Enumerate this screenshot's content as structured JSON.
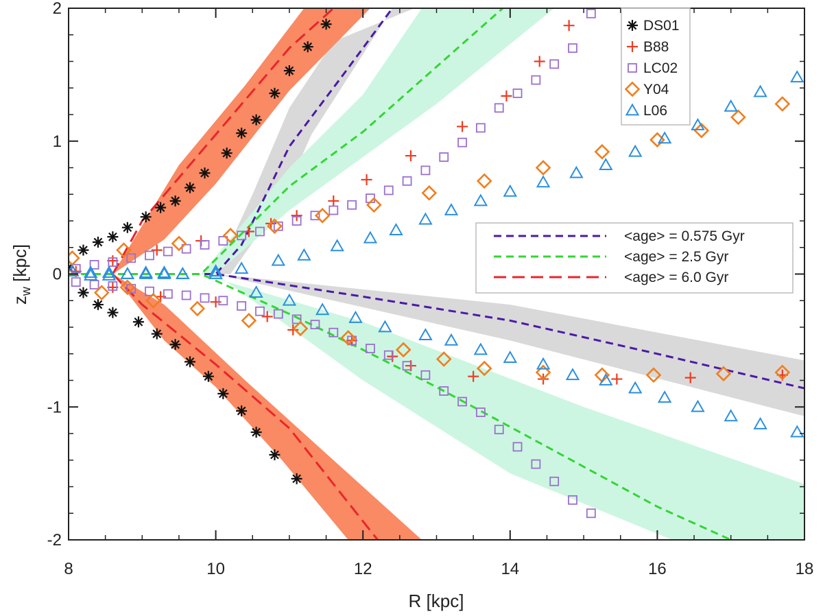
{
  "chart_data": {
    "type": "scatter",
    "xlabel": "R [kpc]",
    "ylabel": "z",
    "ylabel_sub": "w",
    "ylabel_unit": " [kpc]",
    "xlim": [
      8,
      18
    ],
    "ylim": [
      -2,
      2
    ],
    "xticks": [
      8,
      10,
      12,
      14,
      16,
      18
    ],
    "yticks": [
      -2,
      -1,
      0,
      1,
      2
    ],
    "grid": false,
    "colors": {
      "DS01": "#111111",
      "B88": "#ee3b20",
      "LC02": "#9b6fcf",
      "Y04": "#f07e1e",
      "L06": "#2a8fe0",
      "age0575": "#4b1aa6",
      "age25": "#33d633",
      "age60": "#e8262a",
      "bandRed": "#f98a63",
      "bandGrey": "#d9d9d9",
      "bandGreen": "#cdf6e2"
    },
    "series": [
      {
        "name": "DS01",
        "marker": "asterisk",
        "x": [
          8.0,
          8.2,
          8.4,
          8.6,
          8.8,
          9.05,
          9.25,
          9.45,
          9.65,
          9.85,
          10.15,
          10.35,
          10.55,
          10.8,
          11.0,
          11.25,
          11.5,
          8.2,
          8.4,
          8.6,
          8.95,
          9.2,
          9.45,
          9.65,
          9.9,
          10.1,
          10.35,
          10.55,
          10.8,
          11.1
        ],
        "y": [
          0.05,
          0.18,
          0.24,
          0.28,
          0.35,
          0.43,
          0.5,
          0.55,
          0.65,
          0.76,
          0.91,
          1.06,
          1.16,
          1.36,
          1.53,
          1.71,
          1.88,
          -0.14,
          -0.23,
          -0.29,
          -0.36,
          -0.45,
          -0.53,
          -0.66,
          -0.77,
          -0.9,
          -1.03,
          -1.19,
          -1.36,
          -1.54
        ]
      },
      {
        "name": "B88",
        "marker": "plus",
        "x": [
          8.1,
          8.6,
          9.2,
          9.8,
          10.45,
          10.75,
          11.1,
          11.6,
          12.05,
          12.65,
          13.35,
          13.95,
          14.4,
          14.8,
          8.6,
          9.25,
          10.0,
          10.7,
          11.05,
          11.85,
          12.4,
          12.65,
          13.5,
          14.45,
          15.45,
          16.45,
          17.7
        ],
        "y": [
          0.02,
          0.1,
          0.18,
          0.25,
          0.32,
          0.38,
          0.44,
          0.55,
          0.71,
          0.89,
          1.11,
          1.34,
          1.6,
          1.87,
          -0.1,
          -0.17,
          -0.21,
          -0.32,
          -0.42,
          -0.5,
          -0.62,
          -0.69,
          -0.77,
          -0.79,
          -0.79,
          -0.78,
          -0.76
        ]
      },
      {
        "name": "LC02",
        "marker": "square",
        "x": [
          8.1,
          8.35,
          8.6,
          8.85,
          9.1,
          9.35,
          9.6,
          9.85,
          10.1,
          10.35,
          10.6,
          10.85,
          11.1,
          11.35,
          11.6,
          11.85,
          12.1,
          12.35,
          12.6,
          12.85,
          13.1,
          13.35,
          13.6,
          13.85,
          14.1,
          14.35,
          14.6,
          14.85,
          15.1,
          8.1,
          8.35,
          8.6,
          8.85,
          9.1,
          9.35,
          9.6,
          9.85,
          10.1,
          10.35,
          10.6,
          10.85,
          11.1,
          11.35,
          11.6,
          11.85,
          12.1,
          12.35,
          12.6,
          12.85,
          13.1,
          13.35,
          13.6,
          13.85,
          14.1,
          14.35,
          14.6,
          14.85,
          15.1
        ],
        "y": [
          0.04,
          0.07,
          0.09,
          0.12,
          0.14,
          0.17,
          0.19,
          0.22,
          0.25,
          0.29,
          0.32,
          0.36,
          0.4,
          0.44,
          0.48,
          0.52,
          0.57,
          0.63,
          0.7,
          0.78,
          0.88,
          0.99,
          1.1,
          1.25,
          1.36,
          1.46,
          1.58,
          1.7,
          1.96,
          -0.06,
          -0.08,
          -0.09,
          -0.11,
          -0.13,
          -0.15,
          -0.16,
          -0.18,
          -0.2,
          -0.24,
          -0.28,
          -0.3,
          -0.34,
          -0.38,
          -0.44,
          -0.5,
          -0.56,
          -0.61,
          -0.69,
          -0.76,
          -0.88,
          -0.96,
          -1.04,
          -1.17,
          -1.3,
          -1.43,
          -1.56,
          -1.7,
          -1.8
        ]
      },
      {
        "name": "Y04",
        "marker": "diamond",
        "x": [
          8.05,
          8.75,
          9.5,
          10.2,
          10.8,
          11.45,
          12.15,
          12.9,
          13.65,
          14.45,
          15.25,
          16.0,
          16.6,
          17.1,
          17.7,
          8.45,
          8.8,
          9.15,
          9.75,
          10.45,
          11.15,
          11.8,
          12.55,
          13.1,
          13.65,
          14.45,
          15.25,
          15.95,
          16.9,
          17.7
        ],
        "y": [
          0.12,
          0.18,
          0.23,
          0.29,
          0.36,
          0.44,
          0.52,
          0.61,
          0.7,
          0.8,
          0.92,
          1.01,
          1.08,
          1.18,
          1.28,
          -0.14,
          -0.1,
          -0.2,
          -0.26,
          -0.35,
          -0.41,
          -0.48,
          -0.57,
          -0.64,
          -0.71,
          -0.74,
          -0.76,
          -0.76,
          -0.75,
          -0.74
        ]
      },
      {
        "name": "L06",
        "marker": "triangle",
        "x": [
          8.05,
          8.3,
          8.55,
          8.8,
          9.05,
          9.3,
          9.55,
          10.0,
          10.35,
          10.85,
          11.2,
          11.65,
          12.1,
          12.45,
          12.85,
          13.2,
          13.6,
          14.0,
          14.45,
          14.9,
          15.3,
          15.7,
          16.1,
          16.55,
          17.0,
          17.4,
          17.9,
          8.3,
          8.55,
          8.8,
          9.05,
          9.3,
          9.55,
          10.0,
          10.55,
          11.0,
          11.45,
          11.9,
          12.3,
          12.85,
          13.2,
          13.6,
          14.0,
          14.45,
          14.85,
          15.3,
          15.7,
          16.1,
          16.55,
          17.0,
          17.4,
          17.9
        ],
        "y": [
          0.02,
          0.01,
          0.01,
          0.0,
          0.01,
          0.0,
          0.0,
          0.02,
          0.04,
          0.1,
          0.14,
          0.21,
          0.27,
          0.33,
          0.41,
          0.48,
          0.55,
          0.62,
          0.69,
          0.76,
          0.82,
          0.92,
          1.02,
          1.12,
          1.26,
          1.37,
          1.48,
          -0.01,
          -0.01,
          0.0,
          0.0,
          0.01,
          0.0,
          0.0,
          -0.14,
          -0.2,
          -0.27,
          -0.33,
          -0.4,
          -0.46,
          -0.5,
          -0.57,
          -0.63,
          -0.68,
          -0.76,
          -0.8,
          -0.86,
          -0.93,
          -1.0,
          -1.07,
          -1.13,
          -1.19
        ]
      }
    ],
    "lines": [
      {
        "name": "<age> = 0.575 Gyr",
        "style": "dashed",
        "upper": {
          "x": [
            8.0,
            9.0,
            10.0,
            10.35,
            11.0,
            11.8,
            12.4
          ],
          "y": [
            0.0,
            0.0,
            0.0,
            0.22,
            0.96,
            1.55,
            2.0
          ]
        },
        "lower": {
          "x": [
            8.0,
            10.0,
            12.0,
            14.0,
            16.0,
            18.0
          ],
          "y": [
            0.0,
            0.0,
            -0.17,
            -0.35,
            -0.6,
            -0.86
          ]
        }
      },
      {
        "name": "<age> = 2.5 Gyr",
        "style": "dashed",
        "upper": {
          "x": [
            8.0,
            9.0,
            9.8,
            11.0,
            12.0,
            13.0,
            13.9
          ],
          "y": [
            0.0,
            0.0,
            0.0,
            0.66,
            1.07,
            1.56,
            2.0
          ]
        },
        "lower": {
          "x": [
            8.0,
            9.8,
            11.0,
            12.0,
            13.0,
            14.0,
            15.0,
            16.0,
            17.0
          ],
          "y": [
            0.0,
            0.0,
            -0.3,
            -0.57,
            -0.85,
            -1.15,
            -1.45,
            -1.75,
            -2.0
          ]
        }
      },
      {
        "name": "<age> = 6.0 Gyr",
        "style": "longdash",
        "upper": {
          "x": [
            8.6,
            9.0,
            10.0,
            11.0,
            11.6
          ],
          "y": [
            0.0,
            0.4,
            1.05,
            1.7,
            2.0
          ]
        },
        "lower": {
          "x": [
            8.6,
            9.0,
            10.0,
            11.0,
            12.0,
            12.2
          ],
          "y": [
            0.0,
            -0.23,
            -0.68,
            -1.16,
            -1.86,
            -2.0
          ]
        }
      }
    ],
    "bands": [
      {
        "name": "grey-upper",
        "color": "bandGrey",
        "points": [
          [
            10.0,
            0.0
          ],
          [
            10.5,
            0.6
          ],
          [
            11.0,
            1.25
          ],
          [
            11.6,
            1.75
          ],
          [
            12.7,
            2.0
          ],
          [
            12.4,
            2.0
          ],
          [
            11.8,
            1.48
          ],
          [
            11.3,
            1.05
          ],
          [
            10.9,
            0.55
          ],
          [
            10.2,
            0.0
          ]
        ]
      },
      {
        "name": "grey-lower",
        "color": "bandGrey",
        "points": [
          [
            10.0,
            0.0
          ],
          [
            14.0,
            -0.23
          ],
          [
            18.0,
            -0.65
          ],
          [
            18.0,
            -1.07
          ],
          [
            14.0,
            -0.5
          ],
          [
            10.0,
            0.0
          ]
        ]
      },
      {
        "name": "green-upper",
        "color": "bandGreen",
        "points": [
          [
            9.8,
            0.0
          ],
          [
            11.0,
            0.8
          ],
          [
            12.0,
            1.35
          ],
          [
            12.8,
            2.0
          ],
          [
            14.6,
            2.0
          ],
          [
            13.0,
            1.28
          ],
          [
            12.0,
            0.88
          ],
          [
            11.0,
            0.48
          ],
          [
            10.0,
            0.0
          ]
        ]
      },
      {
        "name": "green-lower",
        "color": "bandGreen",
        "points": [
          [
            9.8,
            0.0
          ],
          [
            12.0,
            -0.36
          ],
          [
            15.0,
            -1.0
          ],
          [
            18.0,
            -1.58
          ],
          [
            18.0,
            -2.0
          ],
          [
            16.2,
            -2.0
          ],
          [
            14.0,
            -1.5
          ],
          [
            12.0,
            -0.8
          ],
          [
            10.0,
            0.0
          ]
        ]
      },
      {
        "name": "red-upper",
        "color": "bandRed",
        "points": [
          [
            8.6,
            0.0
          ],
          [
            9.5,
            0.82
          ],
          [
            10.4,
            1.42
          ],
          [
            11.2,
            2.0
          ],
          [
            12.1,
            2.0
          ],
          [
            11.0,
            1.38
          ],
          [
            10.0,
            0.68
          ],
          [
            9.3,
            0.26
          ],
          [
            8.6,
            0.0
          ]
        ]
      },
      {
        "name": "red-lower",
        "color": "bandRed",
        "points": [
          [
            8.6,
            0.0
          ],
          [
            9.3,
            -0.23
          ],
          [
            10.4,
            -0.8
          ],
          [
            11.5,
            -1.35
          ],
          [
            12.8,
            -2.0
          ],
          [
            11.8,
            -2.0
          ],
          [
            10.9,
            -1.4
          ],
          [
            10.0,
            -0.85
          ],
          [
            9.3,
            -0.5
          ],
          [
            8.6,
            0.0
          ]
        ]
      }
    ],
    "legend": {
      "placement": "top-right",
      "entries": [
        "DS01",
        "B88",
        "LC02",
        "Y04",
        "L06"
      ]
    },
    "line_legend": {
      "placement": "center-right",
      "entries": [
        "<age> = 0.575 Gyr",
        "<age> = 2.5 Gyr",
        "<age> = 6.0 Gyr"
      ]
    }
  }
}
